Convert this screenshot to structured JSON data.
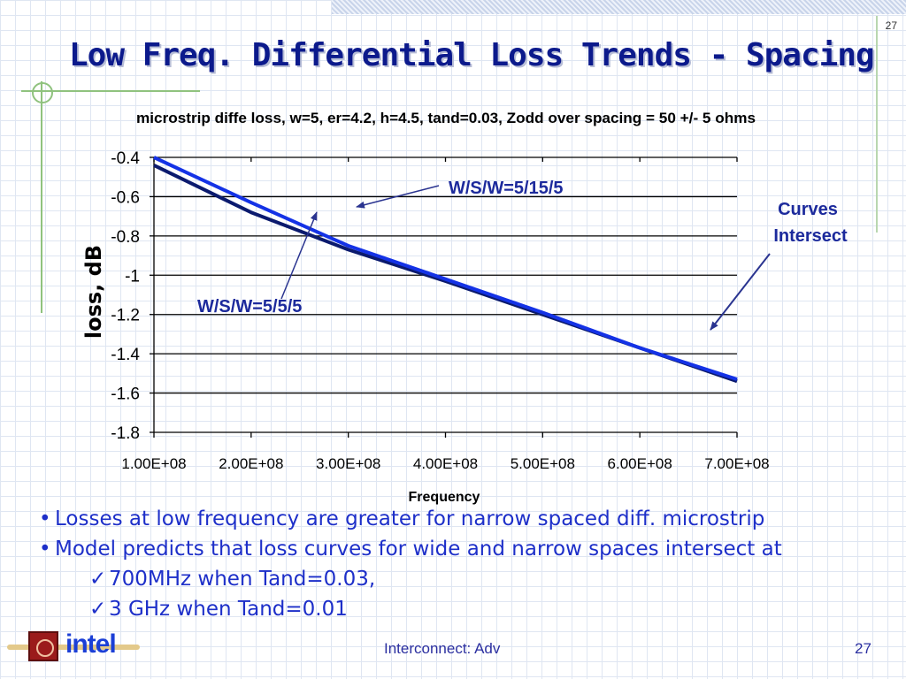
{
  "slide": {
    "title": "Low Freq. Differential Loss Trends - Spacing",
    "number_top": "27"
  },
  "chart_data": {
    "type": "line",
    "title": "microstrip diffe loss, w=5, er=4.2, h=4.5, tand=0.03, Zodd over spacing = 50 +/- 5 ohms",
    "xlabel": "Frequency",
    "ylabel": "loss, dB",
    "xlim": [
      100000000,
      700000000
    ],
    "ylim": [
      -1.8,
      -0.4
    ],
    "x_ticks": [
      "1.00E+08",
      "2.00E+08",
      "3.00E+08",
      "4.00E+08",
      "5.00E+08",
      "6.00E+08",
      "7.00E+08"
    ],
    "y_ticks": [
      "-0.4",
      "-0.6",
      "-0.8",
      "-1",
      "-1.2",
      "-1.4",
      "-1.6",
      "-1.8"
    ],
    "grid": "horizontal",
    "x": [
      100000000,
      200000000,
      300000000,
      400000000,
      500000000,
      600000000,
      700000000
    ],
    "series": [
      {
        "name": "W/S/W=5/5/5",
        "color": "#0b1a6e",
        "values": [
          -0.44,
          -0.68,
          -0.87,
          -1.03,
          -1.2,
          -1.37,
          -1.54
        ]
      },
      {
        "name": "W/S/W=5/15/5",
        "color": "#1432e6",
        "values": [
          -0.4,
          -0.63,
          -0.85,
          -1.02,
          -1.19,
          -1.37,
          -1.53
        ]
      }
    ],
    "annotations": [
      {
        "text": "W/S/W=5/15/5"
      },
      {
        "text": "W/S/W=5/5/5"
      },
      {
        "text": "Curves Intersect",
        "lines": [
          "Curves",
          "Intersect"
        ]
      }
    ]
  },
  "bullets": [
    {
      "mark": "•",
      "text": "Losses at low frequency are greater for narrow spaced diff. microstrip"
    },
    {
      "mark": "•",
      "text": "Model predicts that loss curves for wide and narrow spaces intersect at"
    },
    {
      "mark": "✓",
      "text": "700MHz when Tand=0.03,"
    },
    {
      "mark": "✓",
      "text": "3 GHz when Tand=0.01"
    }
  ],
  "footer": {
    "center": "Interconnect: Adv",
    "page": "27",
    "logo_text": "intel"
  },
  "colors": {
    "title": "#0c1a8c",
    "bullet_text": "#1d2fc9",
    "annotation": "#1c2a9c",
    "arrow": "#2a3490"
  }
}
